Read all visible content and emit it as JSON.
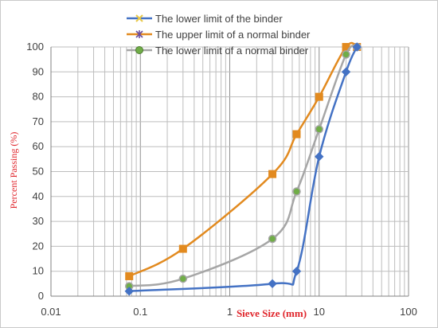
{
  "chart_data": {
    "type": "line",
    "title": "",
    "xlabel": "Sieve Size (mm)",
    "ylabel": "Percent Passing (%)",
    "xscale": "log",
    "xlim": [
      0.01,
      100
    ],
    "ylim": [
      0,
      100
    ],
    "x_tick_labels": [
      "0.01",
      "0.1",
      "1",
      "10",
      "100"
    ],
    "y_tick_labels": [
      "0",
      "10",
      "20",
      "30",
      "40",
      "50",
      "60",
      "70",
      "80",
      "90",
      "100"
    ],
    "grid": true,
    "legend_position": "top",
    "series": [
      {
        "name": "The lower limit of the binder",
        "color": "#4472c4",
        "marker": "diamond",
        "x": [
          0.075,
          3,
          5.6,
          10,
          20,
          26.5
        ],
        "y": [
          2,
          5,
          10,
          56,
          90,
          100
        ]
      },
      {
        "name": "The  upper  limit of a normal binder",
        "color": "#e28a1f",
        "marker": "square",
        "x": [
          0.075,
          0.3,
          3,
          5.6,
          10,
          20,
          26.5
        ],
        "y": [
          8,
          19,
          49,
          65,
          80,
          100,
          100
        ]
      },
      {
        "name": "The lower limit of a normal binder",
        "color": "#a6a6a6",
        "marker": "circle",
        "x": [
          0.075,
          0.3,
          3,
          5.6,
          10,
          20,
          26.5
        ],
        "y": [
          4,
          7,
          23,
          42,
          67,
          97,
          100
        ]
      }
    ]
  }
}
